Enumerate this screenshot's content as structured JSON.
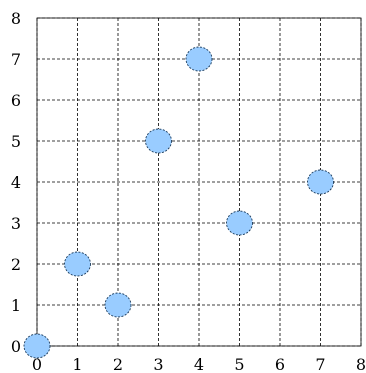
{
  "chart_data": {
    "type": "scatter",
    "title": "",
    "xlabel": "",
    "ylabel": "",
    "xlim": [
      0,
      8
    ],
    "ylim": [
      0,
      8
    ],
    "x_ticks": [
      0,
      1,
      2,
      3,
      4,
      5,
      6,
      7,
      8
    ],
    "y_ticks": [
      0,
      1,
      2,
      3,
      4,
      5,
      6,
      7,
      8
    ],
    "grid": true,
    "legend": "none",
    "point_color": "#99ccff",
    "points": [
      {
        "x": 0,
        "y": 0
      },
      {
        "x": 1,
        "y": 2
      },
      {
        "x": 2,
        "y": 1
      },
      {
        "x": 3,
        "y": 5
      },
      {
        "x": 4,
        "y": 7
      },
      {
        "x": 5,
        "y": 3
      },
      {
        "x": 7,
        "y": 4
      }
    ]
  }
}
